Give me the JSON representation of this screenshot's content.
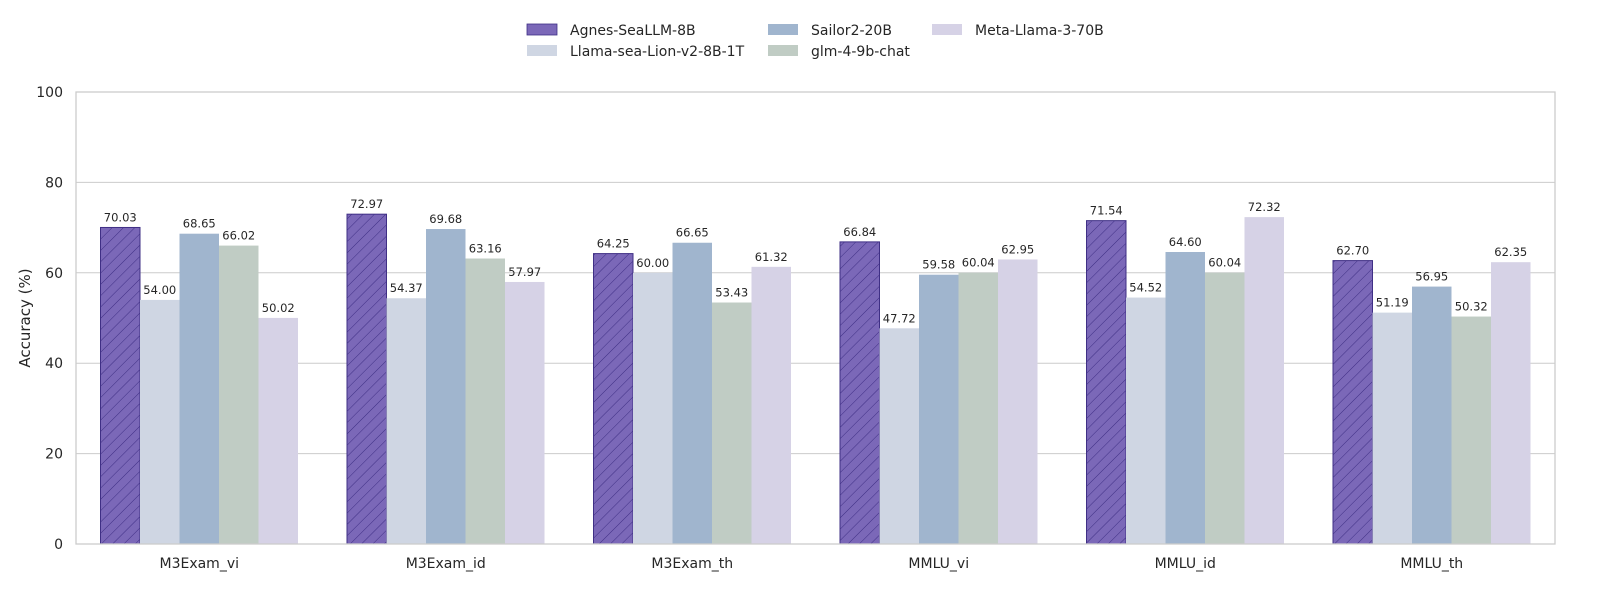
{
  "chart_data": {
    "type": "bar",
    "title": "",
    "xlabel": "",
    "ylabel": "Accuracy (%)",
    "ylim": [
      0,
      100
    ],
    "yticks": [
      0,
      20,
      40,
      60,
      80,
      100
    ],
    "grid": true,
    "legend_position": "top-center",
    "categories": [
      "M3Exam_vi",
      "M3Exam_id",
      "M3Exam_th",
      "MMLU_vi",
      "MMLU_id",
      "MMLU_th"
    ],
    "series": [
      {
        "name": "Agnes-SeaLLM-8B",
        "values": [
          70.03,
          72.97,
          64.25,
          66.84,
          71.54,
          62.7
        ],
        "color": "#7B68B8",
        "hatch": true
      },
      {
        "name": "Llama-sea-Lion-v2-8B-1T",
        "values": [
          54.0,
          54.37,
          60.0,
          47.72,
          54.52,
          51.19
        ],
        "color": "#CFD6E3",
        "hatch": false
      },
      {
        "name": "Sailor2-20B",
        "values": [
          68.65,
          69.68,
          66.65,
          59.58,
          64.6,
          56.95
        ],
        "color": "#A0B5CE",
        "hatch": false
      },
      {
        "name": "glm-4-9b-chat",
        "values": [
          66.02,
          63.16,
          53.43,
          60.04,
          60.04,
          50.32
        ],
        "color": "#C0CCC4",
        "hatch": false
      },
      {
        "name": "Meta-Llama-3-70B",
        "values": [
          50.02,
          57.97,
          61.32,
          62.95,
          72.32,
          62.35
        ],
        "color": "#D6D2E6",
        "hatch": false
      }
    ]
  }
}
